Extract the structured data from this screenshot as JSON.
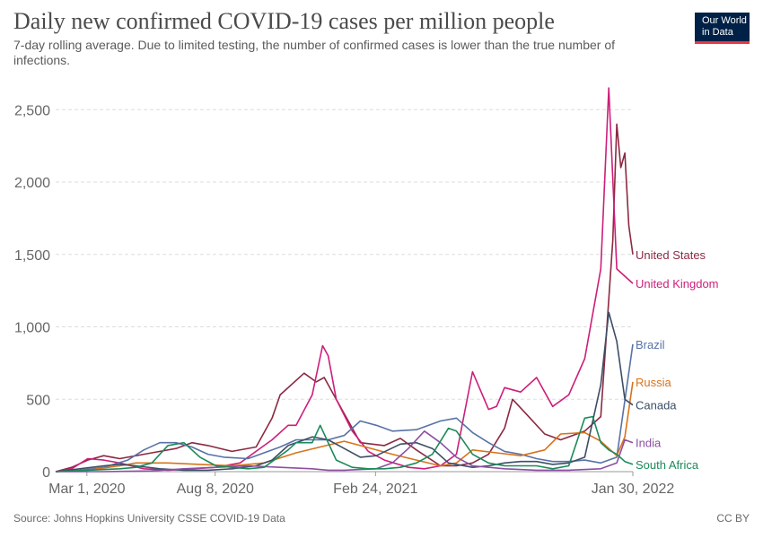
{
  "title": "Daily new confirmed COVID-19 cases per million people",
  "subtitle": "7-day rolling average. Due to limited testing, the number of confirmed cases is lower than the true number of infections.",
  "logo": {
    "line1": "Our World",
    "line2": "in Data"
  },
  "source": "Source: Johns Hopkins University CSSE COVID-19 Data",
  "license": "CC BY",
  "chart_data": {
    "type": "line",
    "xlabel": "",
    "ylabel": "",
    "ylim": [
      0,
      2700
    ],
    "yticks": [
      0,
      500,
      1000,
      1500,
      2000,
      2500
    ],
    "ytick_labels": [
      "0",
      "500",
      "1,000",
      "1,500",
      "2,000",
      "2,500"
    ],
    "xlim": [
      0,
      720
    ],
    "xticks": [
      39,
      199,
      399,
      739
    ],
    "xtick_labels": [
      "Mar 1, 2020",
      "Aug 8, 2020",
      "Feb 24, 2021",
      "Jan 30, 2022"
    ],
    "grid": "horizontal",
    "series": [
      {
        "name": "United States",
        "color": "#8b2942",
        "x": [
          0,
          20,
          40,
          60,
          80,
          120,
          150,
          170,
          190,
          220,
          250,
          270,
          280,
          310,
          325,
          335,
          345,
          360,
          380,
          410,
          430,
          450,
          480,
          500,
          520,
          540,
          560,
          570,
          590,
          610,
          630,
          660,
          680,
          695,
          700,
          705,
          710,
          715,
          720
        ],
        "y": [
          0,
          30,
          80,
          110,
          90,
          130,
          160,
          200,
          180,
          140,
          170,
          370,
          530,
          680,
          620,
          650,
          550,
          400,
          200,
          180,
          230,
          150,
          40,
          40,
          60,
          120,
          300,
          500,
          380,
          260,
          220,
          280,
          380,
          1600,
          2400,
          2100,
          2200,
          1700,
          1500
        ]
      },
      {
        "name": "United Kingdom",
        "color": "#cc1f7a",
        "x": [
          0,
          20,
          40,
          60,
          80,
          110,
          140,
          170,
          200,
          230,
          260,
          270,
          290,
          300,
          320,
          333,
          340,
          350,
          370,
          390,
          410,
          440,
          460,
          480,
          500,
          520,
          540,
          550,
          560,
          580,
          600,
          620,
          640,
          660,
          680,
          690,
          700,
          720
        ],
        "y": [
          0,
          20,
          90,
          80,
          60,
          20,
          10,
          20,
          30,
          60,
          180,
          220,
          320,
          320,
          530,
          870,
          800,
          500,
          280,
          140,
          80,
          30,
          20,
          40,
          120,
          690,
          430,
          450,
          580,
          550,
          650,
          450,
          530,
          780,
          1400,
          2650,
          1400,
          1300
        ]
      },
      {
        "name": "Brazil",
        "color": "#5872a6",
        "x": [
          0,
          30,
          60,
          90,
          110,
          130,
          150,
          170,
          190,
          210,
          240,
          260,
          280,
          300,
          320,
          340,
          360,
          380,
          400,
          420,
          450,
          480,
          500,
          520,
          540,
          560,
          580,
          600,
          620,
          640,
          660,
          680,
          700,
          720
        ],
        "y": [
          0,
          10,
          30,
          80,
          150,
          200,
          200,
          170,
          120,
          100,
          90,
          130,
          170,
          220,
          220,
          220,
          250,
          350,
          320,
          280,
          290,
          350,
          370,
          270,
          200,
          140,
          120,
          90,
          70,
          70,
          80,
          60,
          100,
          880
        ]
      },
      {
        "name": "Russia",
        "color": "#d8731b",
        "x": [
          0,
          40,
          80,
          100,
          140,
          180,
          220,
          260,
          300,
          330,
          360,
          380,
          420,
          450,
          480,
          500,
          520,
          550,
          580,
          610,
          630,
          660,
          680,
          700,
          710,
          720
        ],
        "y": [
          0,
          10,
          40,
          60,
          60,
          50,
          40,
          60,
          130,
          170,
          210,
          180,
          120,
          80,
          40,
          60,
          150,
          130,
          110,
          150,
          260,
          270,
          210,
          110,
          240,
          620
        ]
      },
      {
        "name": "Canada",
        "color": "#3c4e66",
        "x": [
          0,
          30,
          60,
          80,
          100,
          130,
          160,
          190,
          220,
          250,
          270,
          290,
          300,
          320,
          340,
          360,
          380,
          400,
          430,
          450,
          470,
          490,
          520,
          540,
          560,
          580,
          600,
          620,
          640,
          660,
          680,
          690,
          700,
          710,
          720
        ],
        "y": [
          0,
          20,
          40,
          50,
          40,
          20,
          10,
          10,
          20,
          40,
          80,
          180,
          200,
          240,
          220,
          160,
          100,
          110,
          190,
          200,
          160,
          60,
          30,
          40,
          60,
          70,
          70,
          50,
          60,
          100,
          600,
          1100,
          900,
          500,
          460
        ]
      },
      {
        "name": "India",
        "color": "#8c4fa3",
        "x": [
          0,
          60,
          120,
          160,
          200,
          240,
          280,
          320,
          340,
          360,
          380,
          400,
          420,
          440,
          460,
          480,
          500,
          520,
          560,
          600,
          640,
          680,
          700,
          710,
          720
        ],
        "y": [
          0,
          0,
          5,
          20,
          30,
          40,
          30,
          20,
          10,
          10,
          15,
          20,
          60,
          160,
          280,
          200,
          100,
          40,
          20,
          10,
          10,
          20,
          60,
          220,
          200
        ]
      },
      {
        "name": "South Africa",
        "color": "#1b8a5a",
        "x": [
          0,
          40,
          80,
          100,
          120,
          140,
          160,
          180,
          200,
          220,
          240,
          260,
          290,
          300,
          320,
          330,
          340,
          350,
          370,
          390,
          410,
          430,
          450,
          470,
          490,
          500,
          510,
          520,
          540,
          560,
          580,
          600,
          620,
          640,
          660,
          670,
          680,
          690,
          700,
          710,
          720
        ],
        "y": [
          0,
          10,
          20,
          30,
          60,
          180,
          200,
          100,
          40,
          30,
          20,
          30,
          150,
          200,
          200,
          320,
          200,
          80,
          30,
          20,
          20,
          30,
          60,
          120,
          300,
          280,
          200,
          120,
          60,
          40,
          40,
          40,
          20,
          40,
          370,
          380,
          200,
          150,
          120,
          70,
          50
        ]
      }
    ]
  }
}
